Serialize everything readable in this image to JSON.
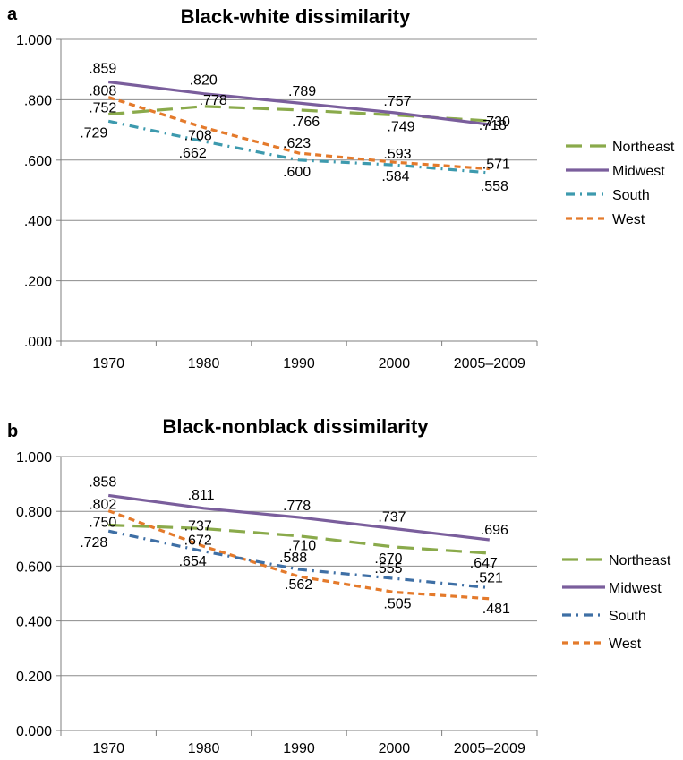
{
  "colors": {
    "Northeast": "#8AAA4B",
    "Midwest": "#7A5E9C",
    "South_a": "#3D9AAE",
    "South_b": "#3E6FA5",
    "West": "#E47A2B",
    "axis": "#7f7f7f",
    "grid": "#8c8c8c"
  },
  "chart_data": [
    {
      "panel": "a",
      "type": "line",
      "title": "Black-white dissimilarity",
      "xlabel": "",
      "ylabel": "",
      "categories": [
        "1970",
        "1980",
        "1990",
        "2000",
        "2005–2009"
      ],
      "ylim": [
        0,
        1
      ],
      "yticks": [
        ".000",
        ".200",
        ".400",
        ".600",
        ".800",
        "1.000"
      ],
      "grid": "horizontal",
      "legend_position": "right",
      "series": [
        {
          "name": "Northeast",
          "style": "long-dash",
          "values": [
            0.752,
            0.778,
            0.766,
            0.749,
            0.73
          ],
          "labels": [
            ".752",
            ".778",
            ".766",
            ".749",
            ".730"
          ]
        },
        {
          "name": "Midwest",
          "style": "solid",
          "values": [
            0.859,
            0.82,
            0.789,
            0.757,
            0.718
          ],
          "labels": [
            ".859",
            ".820",
            ".789",
            ".757",
            ".718"
          ]
        },
        {
          "name": "South",
          "style": "dash-dot",
          "values": [
            0.729,
            0.662,
            0.6,
            0.584,
            0.558
          ],
          "labels": [
            ".729",
            ".662",
            ".600",
            ".584",
            ".558"
          ]
        },
        {
          "name": "West",
          "style": "short-dash",
          "values": [
            0.808,
            0.708,
            0.623,
            0.593,
            0.571
          ],
          "labels": [
            ".808",
            ".708",
            ".623",
            ".593",
            ".571"
          ]
        }
      ]
    },
    {
      "panel": "b",
      "type": "line",
      "title": "Black-nonblack dissimilarity",
      "xlabel": "",
      "ylabel": "",
      "categories": [
        "1970",
        "1980",
        "1990",
        "2000",
        "2005–2009"
      ],
      "ylim": [
        0,
        1
      ],
      "yticks": [
        "0.000",
        "0.200",
        "0.400",
        "0.600",
        "0.800",
        "1.000"
      ],
      "grid": "horizontal",
      "legend_position": "right",
      "series": [
        {
          "name": "Northeast",
          "style": "long-dash",
          "values": [
            0.75,
            0.737,
            0.71,
            0.67,
            0.647
          ],
          "labels": [
            ".750",
            ".737",
            ".710",
            ".670",
            ".647"
          ]
        },
        {
          "name": "Midwest",
          "style": "solid",
          "values": [
            0.858,
            0.811,
            0.778,
            0.737,
            0.696
          ],
          "labels": [
            ".858",
            ".811",
            ".778",
            ".737",
            ".696"
          ]
        },
        {
          "name": "South",
          "style": "dash-dot",
          "values": [
            0.728,
            0.654,
            0.588,
            0.555,
            0.521
          ],
          "labels": [
            ".728",
            ".654",
            ".588",
            ".555",
            ".521"
          ]
        },
        {
          "name": "West",
          "style": "short-dash",
          "values": [
            0.802,
            0.672,
            0.562,
            0.505,
            0.481
          ],
          "labels": [
            ".802",
            ".672",
            ".562",
            ".505",
            ".481"
          ]
        }
      ]
    }
  ]
}
